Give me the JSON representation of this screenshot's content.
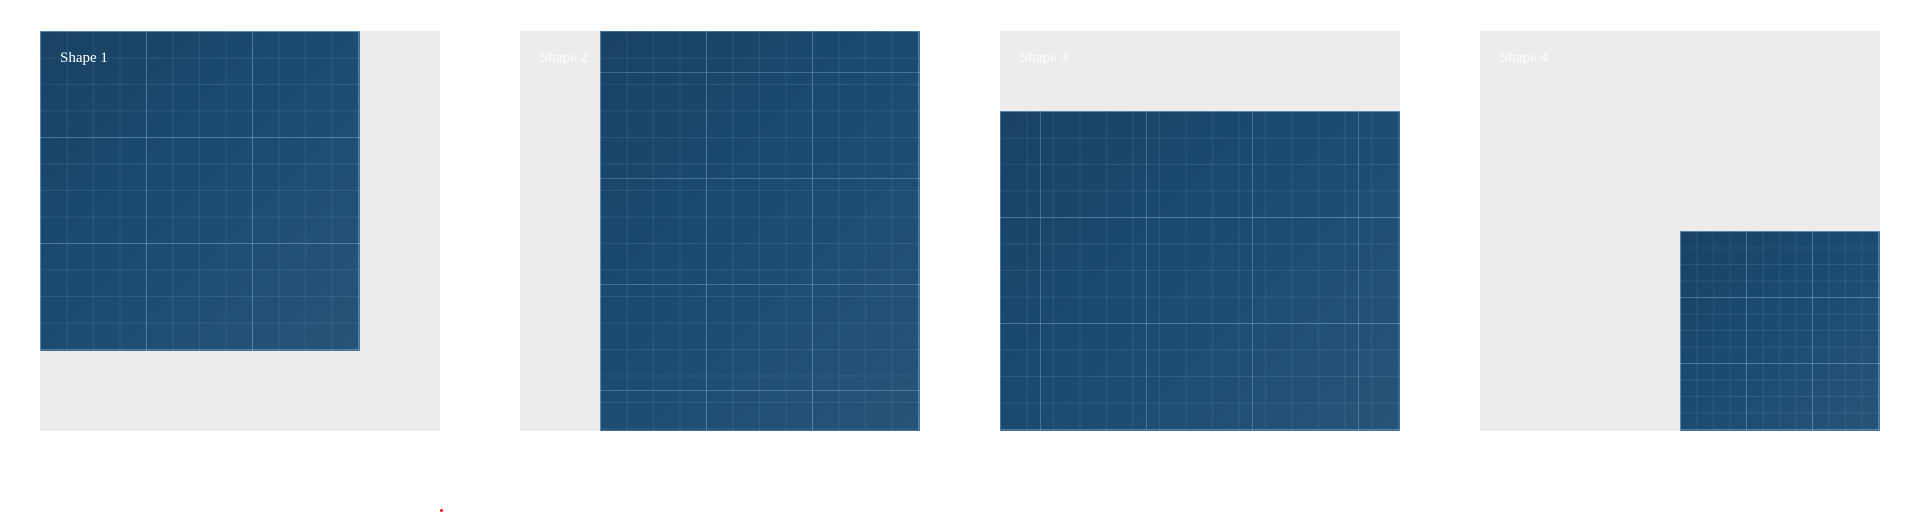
{
  "cards": [
    {
      "label": "Shape 1"
    },
    {
      "label": "Shape 2"
    },
    {
      "label": "Shape 3"
    },
    {
      "label": "Shape 4"
    }
  ],
  "colors": {
    "page_background": "#ffffff",
    "card_background": "#ececec",
    "grid_fill": "#1c4a70",
    "grid_lines": "#8cb4d7",
    "label_text": "#ffffff",
    "marker": "#e02020"
  }
}
